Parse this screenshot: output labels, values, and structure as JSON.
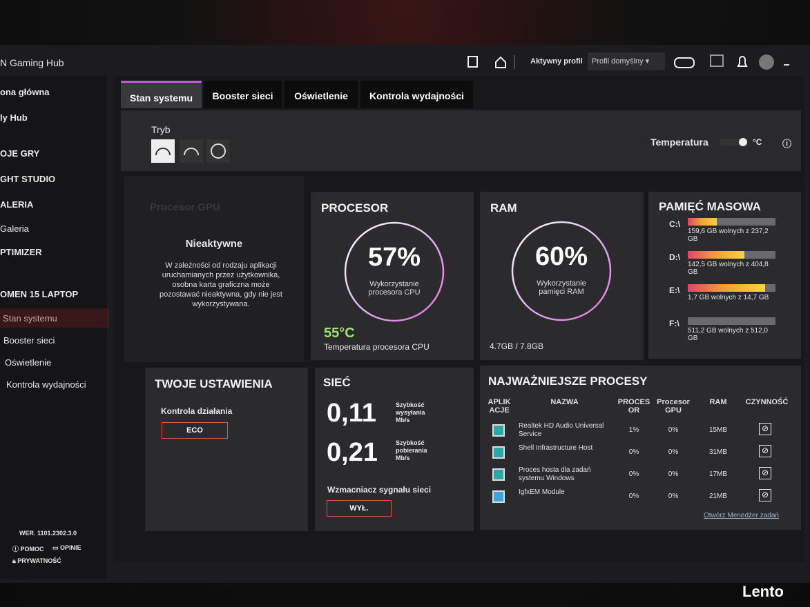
{
  "header": {
    "app_title": "N Gaming Hub",
    "active_profile_label": "Aktywny profil",
    "profile": "Profil domyślny"
  },
  "sidebar": {
    "items": [
      "ona główna",
      "ly Hub",
      "OJE GRY",
      "GHT STUDIO",
      "ALERIA",
      "Galeria",
      "PTIMIZER",
      "OMEN 15 LAPTOP",
      "Stan systemu",
      "Booster sieci",
      "Oświetlenie",
      "Kontrola wydajności"
    ],
    "version": "WER. 1101.2302.3.0",
    "help": "POMOC",
    "feedback": "OPINIE",
    "privacy": "PRYWATNOŚĆ"
  },
  "tabs": [
    "Stan systemu",
    "Booster sieci",
    "Oświetlenie",
    "Kontrola wydajności"
  ],
  "mode_label": "Tryb",
  "temperature_label": "Temperatura",
  "temperature_unit": "°C",
  "gpu": {
    "title": "Procesor GPU",
    "status": "Nieaktywne",
    "description": "W zależności od rodzaju aplikacji uruchamianych przez użytkownika, osobna karta graficzna może pozostawać nieaktywna, gdy nie jest wykorzystywana."
  },
  "cpu": {
    "title": "PROCESOR",
    "usage": "57%",
    "usage_caption": "Wykorzystanie procesora CPU",
    "temperature": "55°C",
    "temperature_caption": "Temperatura procesora CPU"
  },
  "ram": {
    "title": "RAM",
    "usage": "60%",
    "usage_caption": "Wykorzystanie pamięci RAM",
    "amount": "4.7GB / 7.8GB"
  },
  "storage": {
    "title": "PAMIĘĆ MASOWA",
    "drives": [
      {
        "letter": "C:\\",
        "label": "159,6 GB wolnych z 237,2 GB",
        "free": 159.6,
        "total": 237.2
      },
      {
        "letter": "D:\\",
        "label": "142,5 GB wolnych z 404,8 GB",
        "free": 142.5,
        "total": 404.8
      },
      {
        "letter": "E:\\",
        "label": "1,7 GB wolnych z 14,7 GB",
        "free": 1.7,
        "total": 14.7
      },
      {
        "letter": "F:\\",
        "label": "511,2 GB wolnych z 512,0 GB",
        "free": 511.2,
        "total": 512.0
      }
    ]
  },
  "settings": {
    "title": "TWOJE USTAWIENIA",
    "control_label": "Kontrola działania",
    "control_value": "ECO"
  },
  "network": {
    "title": "SIEĆ",
    "upload": "0,11",
    "upload_label": "Szybkość wysyłania Mb/s",
    "download": "0,21",
    "download_label": "Szybkość pobierania Mb/s",
    "booster_label": "Wzmacniacz sygnału sieci",
    "booster_value": "WYŁ."
  },
  "processes": {
    "title": "NAJWAŻNIEJSZE PROCESY",
    "headers": [
      "APLIK ACJE",
      "NAZWA",
      "PROCES OR",
      "Procesor GPU",
      "RAM",
      "CZYNNOŚĆ"
    ],
    "rows": [
      [
        "Realtek HD Audio Universal Service",
        "1%",
        "0%",
        "15MB"
      ],
      [
        "Shell Infrastructure Host",
        "0%",
        "0%",
        "31MB"
      ],
      [
        "Proces hosta dla zadań systemu Windows",
        "0%",
        "0%",
        "17MB"
      ],
      [
        "IgfxEM Module",
        "0%",
        "0%",
        "21MB"
      ]
    ],
    "link": "Otwórz Menedżer zadań"
  },
  "watermark": "Lento"
}
